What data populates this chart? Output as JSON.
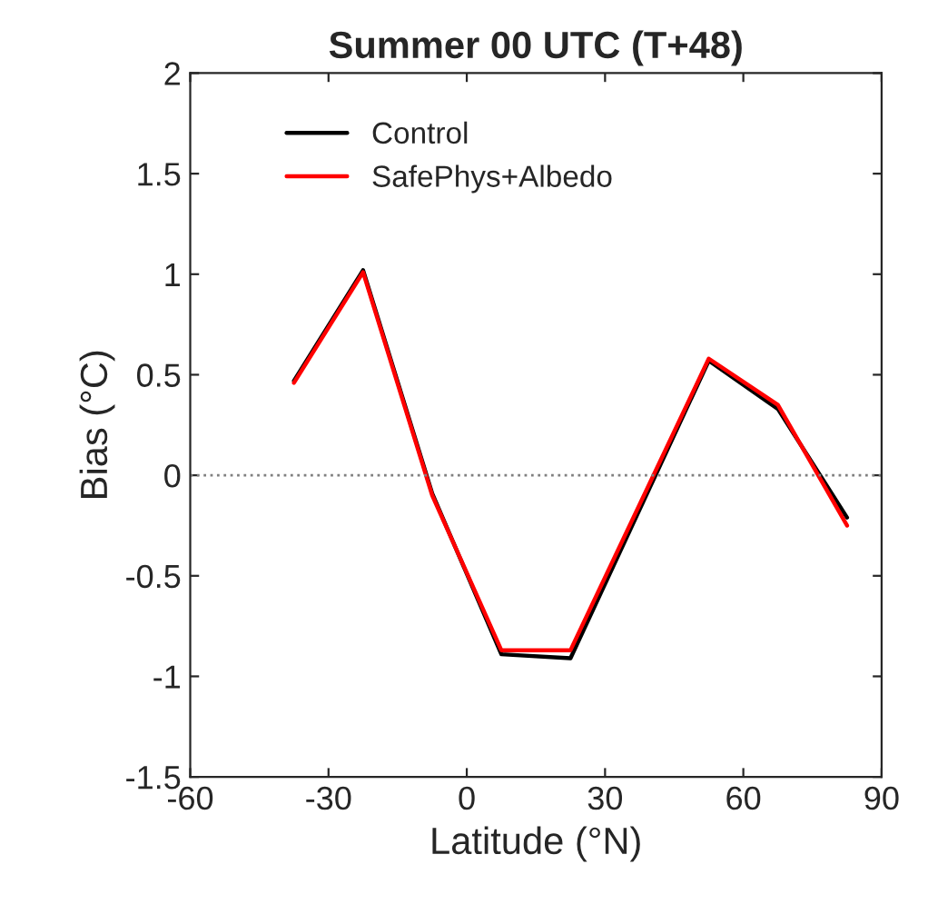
{
  "chart_data": {
    "type": "line",
    "title": "Summer 00 UTC (T+48)",
    "xlabel": "Latitude (°N)",
    "ylabel": "Bias (°C)",
    "x": [
      -37.5,
      -22.5,
      -7.5,
      7.5,
      22.5,
      52.5,
      67.5,
      82.5
    ],
    "series": [
      {
        "name": "Control",
        "color": "#000000",
        "values": [
          0.47,
          1.02,
          -0.09,
          -0.89,
          -0.91,
          0.57,
          0.33,
          -0.21
        ]
      },
      {
        "name": "SafePhys+Albedo",
        "color": "#ff0000",
        "values": [
          0.46,
          1.01,
          -0.1,
          -0.87,
          -0.87,
          0.58,
          0.35,
          -0.25
        ]
      }
    ],
    "xlim": [
      -60,
      90
    ],
    "xticks": [
      -60,
      -30,
      0,
      30,
      60,
      90
    ],
    "ylim": [
      -1.5,
      2
    ],
    "yticks": [
      -1.5,
      -1,
      -0.5,
      0,
      0.5,
      1,
      1.5,
      2
    ],
    "ref_lines": [
      {
        "axis": "y",
        "value": 0,
        "label": null,
        "color": "#808080",
        "line_style": "dotted"
      }
    ],
    "legend": "top left",
    "grid": false,
    "marker": "none",
    "line_style": "solid"
  }
}
